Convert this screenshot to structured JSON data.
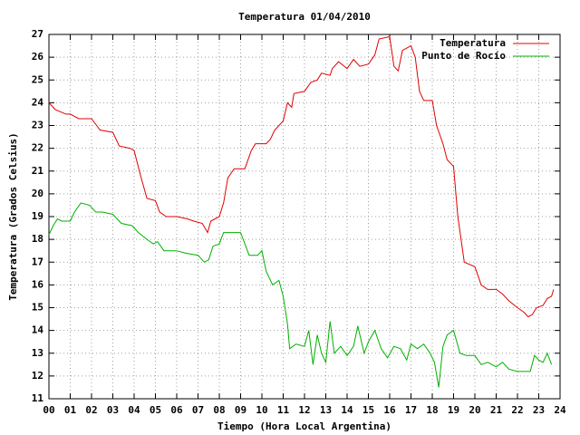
{
  "chart_data": {
    "type": "line",
    "title": "Temperatura 01/04/2010",
    "xlabel": "Tiempo (Hora Local Argentina)",
    "ylabel": "Temperatura (Grados Celsius)",
    "xlim": [
      0,
      24
    ],
    "ylim": [
      11,
      27
    ],
    "xticks": [
      {
        "value": 0,
        "label": "00"
      },
      {
        "value": 1,
        "label": "01"
      },
      {
        "value": 2,
        "label": "02"
      },
      {
        "value": 3,
        "label": "03"
      },
      {
        "value": 4,
        "label": "04"
      },
      {
        "value": 5,
        "label": "05"
      },
      {
        "value": 6,
        "label": "06"
      },
      {
        "value": 7,
        "label": "07"
      },
      {
        "value": 8,
        "label": "08"
      },
      {
        "value": 9,
        "label": "09"
      },
      {
        "value": 10,
        "label": "10"
      },
      {
        "value": 11,
        "label": "11"
      },
      {
        "value": 12,
        "label": "12"
      },
      {
        "value": 13,
        "label": "13"
      },
      {
        "value": 14,
        "label": "14"
      },
      {
        "value": 15,
        "label": "15"
      },
      {
        "value": 16,
        "label": "16"
      },
      {
        "value": 17,
        "label": "17"
      },
      {
        "value": 18,
        "label": "18"
      },
      {
        "value": 19,
        "label": "19"
      },
      {
        "value": 20,
        "label": "20"
      },
      {
        "value": 21,
        "label": "21"
      },
      {
        "value": 22,
        "label": "22"
      },
      {
        "value": 23,
        "label": "23"
      },
      {
        "value": 24,
        "label": "24"
      }
    ],
    "yticks": [
      11,
      12,
      13,
      14,
      15,
      16,
      17,
      18,
      19,
      20,
      21,
      22,
      23,
      24,
      25,
      26,
      27
    ],
    "grid": true,
    "legend": "top-right",
    "series": [
      {
        "name": "Temperatura",
        "color": "#e00000",
        "x": [
          0.0,
          0.3,
          0.8,
          1.0,
          1.4,
          2.0,
          2.4,
          3.0,
          3.3,
          3.8,
          4.0,
          4.3,
          4.6,
          5.0,
          5.2,
          5.5,
          6.0,
          6.5,
          6.8,
          7.2,
          7.45,
          7.6,
          8.0,
          8.2,
          8.4,
          8.7,
          9.2,
          9.5,
          9.7,
          10.2,
          10.4,
          10.6,
          11.0,
          11.2,
          11.4,
          11.5,
          12.0,
          12.3,
          12.6,
          12.8,
          13.2,
          13.3,
          13.6,
          14.0,
          14.3,
          14.6,
          15.0,
          15.3,
          15.5,
          16.0,
          16.2,
          16.4,
          16.6,
          17.0,
          17.2,
          17.4,
          17.6,
          18.0,
          18.2,
          18.5,
          18.7,
          19.0,
          19.2,
          19.5,
          20.0,
          20.3,
          20.6,
          21.0,
          21.3,
          21.6,
          22.0,
          22.3,
          22.5,
          22.7,
          22.9,
          23.2,
          23.4,
          23.6,
          23.7
        ],
        "values": [
          24.0,
          23.7,
          23.5,
          23.5,
          23.3,
          23.3,
          22.8,
          22.7,
          22.1,
          22.0,
          21.9,
          20.8,
          19.8,
          19.7,
          19.2,
          19.0,
          19.0,
          18.9,
          18.8,
          18.7,
          18.3,
          18.8,
          19.0,
          19.6,
          20.7,
          21.1,
          21.1,
          21.9,
          22.2,
          22.2,
          22.4,
          22.8,
          23.2,
          24.0,
          23.8,
          24.4,
          24.5,
          24.9,
          25.0,
          25.3,
          25.2,
          25.5,
          25.8,
          25.5,
          25.9,
          25.6,
          25.7,
          26.1,
          26.8,
          26.9,
          25.6,
          25.4,
          26.3,
          26.5,
          26.0,
          24.5,
          24.1,
          24.1,
          23.0,
          22.2,
          21.5,
          21.2,
          19.0,
          17.0,
          16.8,
          16.0,
          15.8,
          15.8,
          15.6,
          15.3,
          15.0,
          14.8,
          14.6,
          14.7,
          15.0,
          15.1,
          15.4,
          15.5,
          15.8
        ]
      },
      {
        "name": "Punto de Rocío",
        "color": "#00b000",
        "x": [
          0.0,
          0.2,
          0.4,
          0.6,
          1.0,
          1.2,
          1.5,
          1.9,
          2.2,
          2.5,
          3.0,
          3.4,
          3.9,
          4.2,
          4.6,
          4.9,
          5.1,
          5.4,
          6.0,
          6.4,
          7.0,
          7.3,
          7.5,
          7.7,
          8.0,
          8.2,
          8.6,
          9.0,
          9.2,
          9.4,
          9.8,
          10.0,
          10.2,
          10.5,
          10.8,
          11.0,
          11.2,
          11.3,
          11.6,
          12.0,
          12.2,
          12.4,
          12.6,
          12.8,
          13.0,
          13.2,
          13.4,
          13.7,
          14.0,
          14.3,
          14.5,
          14.8,
          15.0,
          15.3,
          15.6,
          15.9,
          16.2,
          16.5,
          16.8,
          17.0,
          17.3,
          17.6,
          17.9,
          18.1,
          18.3,
          18.5,
          18.7,
          19.0,
          19.3,
          19.6,
          20.0,
          20.3,
          20.6,
          21.0,
          21.3,
          21.6,
          22.0,
          22.4,
          22.6,
          22.8,
          23.0,
          23.2,
          23.4,
          23.6
        ],
        "values": [
          18.2,
          18.6,
          18.9,
          18.8,
          18.8,
          19.2,
          19.6,
          19.5,
          19.2,
          19.2,
          19.1,
          18.7,
          18.6,
          18.3,
          18.0,
          17.8,
          17.9,
          17.5,
          17.5,
          17.4,
          17.3,
          17.0,
          17.1,
          17.7,
          17.8,
          18.3,
          18.3,
          18.3,
          17.8,
          17.3,
          17.3,
          17.5,
          16.6,
          16.0,
          16.2,
          15.5,
          14.3,
          13.2,
          13.4,
          13.3,
          14.0,
          12.5,
          13.8,
          13.0,
          12.6,
          14.4,
          13.0,
          13.3,
          12.9,
          13.3,
          14.2,
          13.0,
          13.5,
          14.0,
          13.2,
          12.8,
          13.3,
          13.2,
          12.7,
          13.4,
          13.2,
          13.4,
          13.0,
          12.6,
          11.5,
          13.3,
          13.8,
          14.0,
          13.0,
          12.9,
          12.9,
          12.5,
          12.6,
          12.4,
          12.6,
          12.3,
          12.2,
          12.2,
          12.2,
          12.9,
          12.7,
          12.6,
          13.0,
          12.5
        ]
      }
    ]
  }
}
